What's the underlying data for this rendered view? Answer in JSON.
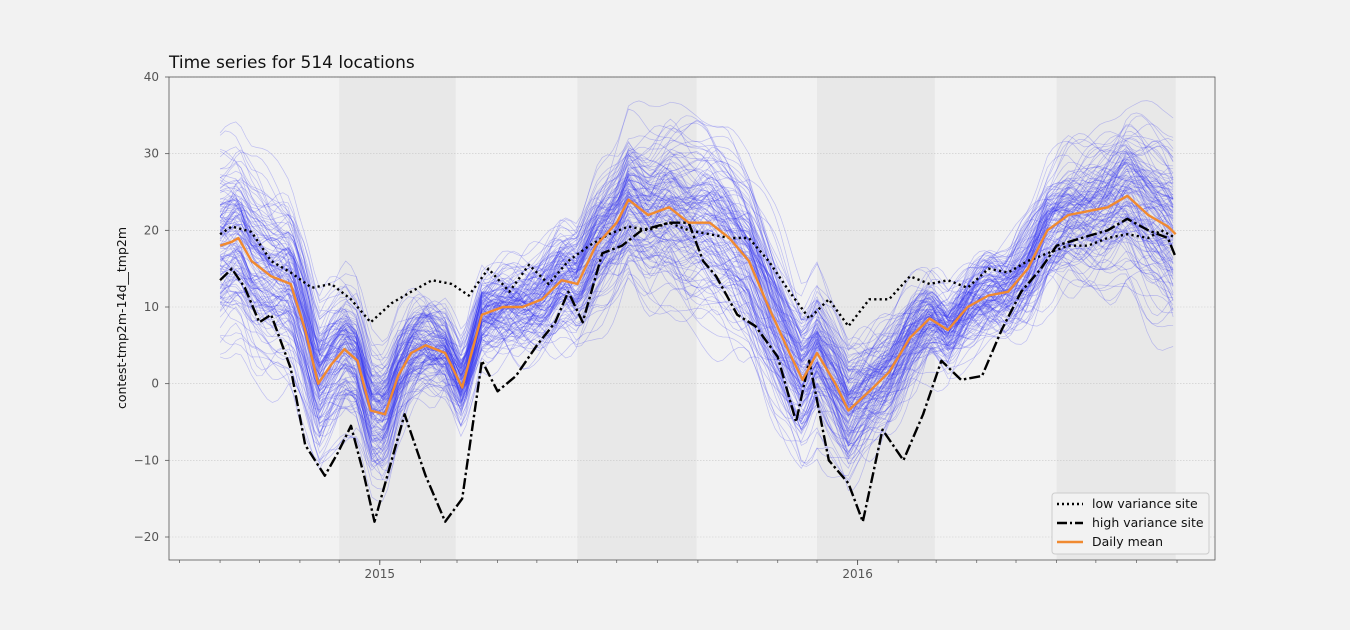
{
  "chart_data": {
    "type": "line",
    "title": "Time series for 514 locations",
    "ylabel": "contest-tmp2m-14d__tmp2m",
    "xlabel": "",
    "x_range": [
      "2014-09-01",
      "2016-08-31"
    ],
    "xlim": [
      "2014-07-24",
      "2016-09-30"
    ],
    "ylim": [
      -23,
      40
    ],
    "y_ticks": [
      -20,
      -10,
      0,
      10,
      20,
      30,
      40
    ],
    "y_tick_labels": [
      "−20",
      "−10",
      "0",
      "10",
      "20",
      "30",
      "40"
    ],
    "x_tick_labels": [
      {
        "date": "2015-01-01",
        "label": "2015"
      },
      {
        "date": "2016-01-01",
        "label": "2016"
      }
    ],
    "grid": true,
    "legend_position": "lower-right",
    "shaded_periods": [
      [
        "2014-12-01",
        "2015-02-28"
      ],
      [
        "2015-06-01",
        "2015-08-31"
      ],
      [
        "2015-12-01",
        "2016-02-29"
      ],
      [
        "2016-06-01",
        "2016-08-31"
      ]
    ],
    "ensemble": {
      "count": 514,
      "color": "#3a3af0"
    },
    "series": [
      {
        "name": "low variance site",
        "color": "#000000",
        "style": "dotted",
        "points": [
          [
            "2014-09-01",
            19.5
          ],
          [
            "2014-09-10",
            20.5
          ],
          [
            "2014-09-25",
            19.8
          ],
          [
            "2014-10-10",
            16
          ],
          [
            "2014-10-25",
            14.5
          ],
          [
            "2014-11-10",
            12.5
          ],
          [
            "2014-11-25",
            13
          ],
          [
            "2014-12-10",
            11
          ],
          [
            "2014-12-25",
            8
          ],
          [
            "2015-01-10",
            10.5
          ],
          [
            "2015-01-25",
            12
          ],
          [
            "2015-02-10",
            13.5
          ],
          [
            "2015-02-25",
            13
          ],
          [
            "2015-03-10",
            11.5
          ],
          [
            "2015-03-25",
            15
          ],
          [
            "2015-04-10",
            12
          ],
          [
            "2015-04-25",
            15.5
          ],
          [
            "2015-05-10",
            13
          ],
          [
            "2015-05-25",
            16
          ],
          [
            "2015-06-10",
            18
          ],
          [
            "2015-06-25",
            19.5
          ],
          [
            "2015-07-10",
            20.5
          ],
          [
            "2015-07-25",
            20
          ],
          [
            "2015-08-10",
            21
          ],
          [
            "2015-08-25",
            20
          ],
          [
            "2015-09-10",
            19.5
          ],
          [
            "2015-09-25",
            19
          ],
          [
            "2015-10-10",
            19
          ],
          [
            "2015-10-25",
            16
          ],
          [
            "2015-11-10",
            12
          ],
          [
            "2015-11-25",
            8.5
          ],
          [
            "2015-12-10",
            11
          ],
          [
            "2015-12-25",
            7.5
          ],
          [
            "2016-01-10",
            11
          ],
          [
            "2016-01-25",
            11
          ],
          [
            "2016-02-10",
            14
          ],
          [
            "2016-02-25",
            13
          ],
          [
            "2016-03-10",
            13.5
          ],
          [
            "2016-03-25",
            12.5
          ],
          [
            "2016-04-10",
            15
          ],
          [
            "2016-04-25",
            14.5
          ],
          [
            "2016-05-10",
            16
          ],
          [
            "2016-05-25",
            17
          ],
          [
            "2016-06-10",
            18
          ],
          [
            "2016-06-25",
            18
          ],
          [
            "2016-07-10",
            19
          ],
          [
            "2016-07-25",
            19.5
          ],
          [
            "2016-08-10",
            19
          ],
          [
            "2016-08-20",
            20
          ],
          [
            "2016-08-31",
            19
          ]
        ]
      },
      {
        "name": "high variance site",
        "color": "#000000",
        "style": "dashdot",
        "points": [
          [
            "2014-09-01",
            13.5
          ],
          [
            "2014-09-10",
            15
          ],
          [
            "2014-09-20",
            12.5
          ],
          [
            "2014-10-01",
            8
          ],
          [
            "2014-10-10",
            9
          ],
          [
            "2014-10-25",
            2
          ],
          [
            "2014-11-05",
            -8
          ],
          [
            "2014-11-20",
            -12
          ],
          [
            "2014-11-30",
            -9
          ],
          [
            "2014-12-10",
            -5.5
          ],
          [
            "2014-12-20",
            -12
          ],
          [
            "2014-12-28",
            -18
          ],
          [
            "2015-01-10",
            -10
          ],
          [
            "2015-01-20",
            -4
          ],
          [
            "2015-02-05",
            -12
          ],
          [
            "2015-02-20",
            -18
          ],
          [
            "2015-03-05",
            -15
          ],
          [
            "2015-03-20",
            3
          ],
          [
            "2015-04-01",
            -1
          ],
          [
            "2015-04-15",
            1
          ],
          [
            "2015-05-01",
            5
          ],
          [
            "2015-05-15",
            8
          ],
          [
            "2015-05-25",
            12
          ],
          [
            "2015-06-05",
            8
          ],
          [
            "2015-06-20",
            17
          ],
          [
            "2015-07-05",
            18
          ],
          [
            "2015-07-20",
            20
          ],
          [
            "2015-08-10",
            21
          ],
          [
            "2015-08-25",
            21
          ],
          [
            "2015-09-05",
            16
          ],
          [
            "2015-09-15",
            14
          ],
          [
            "2015-10-01",
            9
          ],
          [
            "2015-10-15",
            7.5
          ],
          [
            "2015-11-01",
            3.5
          ],
          [
            "2015-11-15",
            -5
          ],
          [
            "2015-11-25",
            3
          ],
          [
            "2015-12-10",
            -10
          ],
          [
            "2015-12-25",
            -13
          ],
          [
            "2016-01-05",
            -18
          ],
          [
            "2016-01-20",
            -6
          ],
          [
            "2016-02-05",
            -10
          ],
          [
            "2016-02-20",
            -4
          ],
          [
            "2016-03-05",
            3
          ],
          [
            "2016-03-20",
            0.5
          ],
          [
            "2016-04-05",
            1
          ],
          [
            "2016-04-20",
            7
          ],
          [
            "2016-05-05",
            12
          ],
          [
            "2016-05-20",
            15
          ],
          [
            "2016-06-01",
            18
          ],
          [
            "2016-06-20",
            19
          ],
          [
            "2016-07-10",
            20
          ],
          [
            "2016-07-25",
            21.5
          ],
          [
            "2016-08-10",
            20
          ],
          [
            "2016-08-25",
            19
          ],
          [
            "2016-08-31",
            16.5
          ]
        ]
      },
      {
        "name": "Daily mean",
        "color": "#f08a30",
        "style": "solid",
        "points": [
          [
            "2014-09-01",
            18
          ],
          [
            "2014-09-10",
            18.5
          ],
          [
            "2014-09-15",
            19
          ],
          [
            "2014-09-25",
            16
          ],
          [
            "2014-10-10",
            14
          ],
          [
            "2014-10-25",
            13
          ],
          [
            "2014-11-05",
            7
          ],
          [
            "2014-11-15",
            0
          ],
          [
            "2014-11-25",
            2.5
          ],
          [
            "2014-12-05",
            4.5
          ],
          [
            "2014-12-15",
            3
          ],
          [
            "2014-12-25",
            -3.5
          ],
          [
            "2015-01-05",
            -4
          ],
          [
            "2015-01-15",
            1
          ],
          [
            "2015-01-25",
            4
          ],
          [
            "2015-02-05",
            5
          ],
          [
            "2015-02-20",
            4
          ],
          [
            "2015-03-05",
            -0.5
          ],
          [
            "2015-03-20",
            9
          ],
          [
            "2015-04-05",
            10
          ],
          [
            "2015-04-20",
            10
          ],
          [
            "2015-05-05",
            11
          ],
          [
            "2015-05-20",
            13.5
          ],
          [
            "2015-06-01",
            13
          ],
          [
            "2015-06-15",
            18
          ],
          [
            "2015-07-01",
            21
          ],
          [
            "2015-07-10",
            24
          ],
          [
            "2015-07-25",
            22
          ],
          [
            "2015-08-10",
            23
          ],
          [
            "2015-08-25",
            21
          ],
          [
            "2015-09-10",
            21
          ],
          [
            "2015-09-25",
            19
          ],
          [
            "2015-10-10",
            16
          ],
          [
            "2015-10-25",
            10
          ],
          [
            "2015-11-10",
            4
          ],
          [
            "2015-11-20",
            0.5
          ],
          [
            "2015-12-01",
            4
          ],
          [
            "2015-12-15",
            0
          ],
          [
            "2015-12-25",
            -3.5
          ],
          [
            "2016-01-10",
            -1
          ],
          [
            "2016-01-25",
            1.5
          ],
          [
            "2016-02-10",
            6
          ],
          [
            "2016-02-25",
            8.5
          ],
          [
            "2016-03-10",
            7
          ],
          [
            "2016-03-25",
            10
          ],
          [
            "2016-04-10",
            11.5
          ],
          [
            "2016-04-25",
            12
          ],
          [
            "2016-05-10",
            15
          ],
          [
            "2016-05-25",
            20
          ],
          [
            "2016-06-10",
            22
          ],
          [
            "2016-06-25",
            22.5
          ],
          [
            "2016-07-10",
            23
          ],
          [
            "2016-07-25",
            24.5
          ],
          [
            "2016-08-10",
            22
          ],
          [
            "2016-08-25",
            20.5
          ],
          [
            "2016-08-31",
            19.5
          ]
        ]
      }
    ]
  }
}
